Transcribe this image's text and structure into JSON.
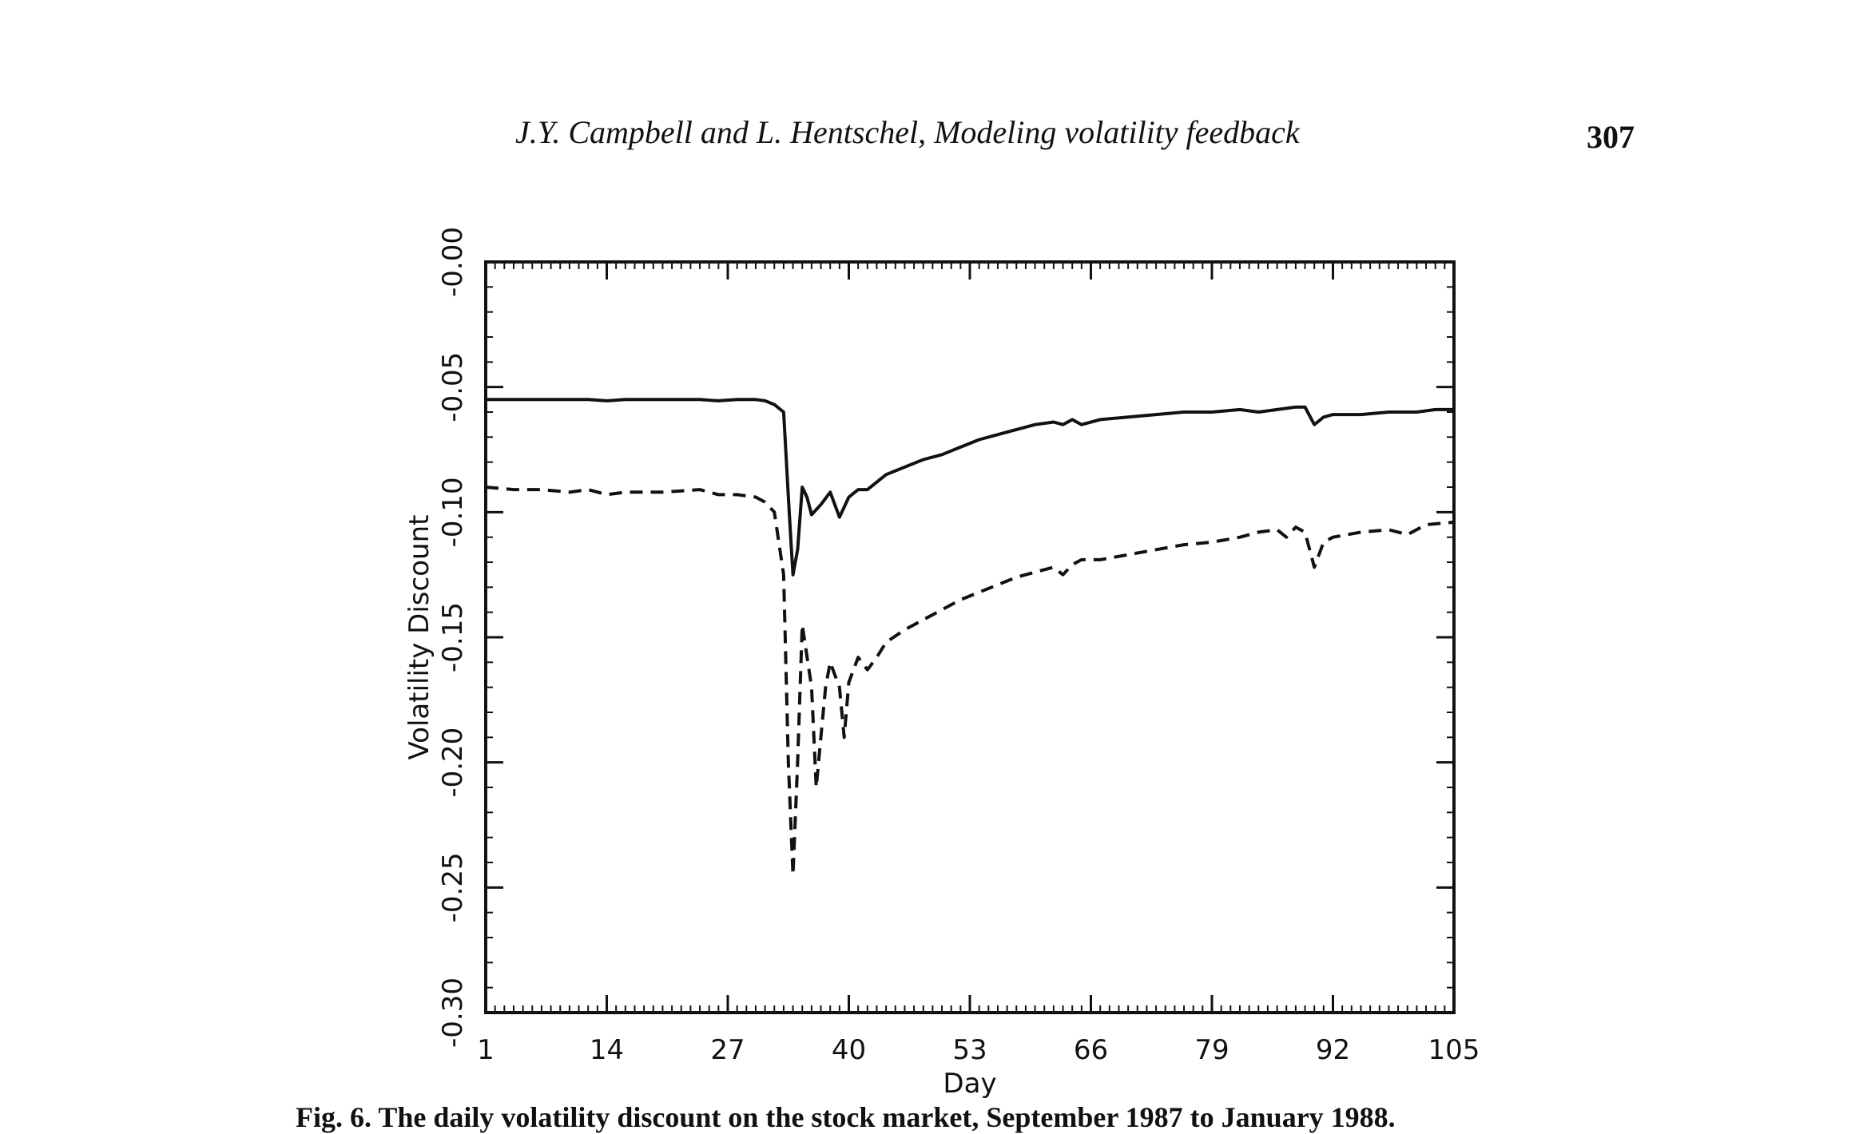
{
  "page": {
    "running_head": "J.Y. Campbell and L. Hentschel, Modeling volatility feedback",
    "page_number": "307",
    "caption": "Fig. 6. The daily volatility discount on the stock market, September 1987 to January 1988."
  },
  "chart_data": {
    "type": "line",
    "title": "",
    "xlabel": "Day",
    "ylabel": "Volatility Discount",
    "xlim": [
      1,
      105
    ],
    "ylim": [
      -0.3,
      0.0
    ],
    "xticks": [
      1,
      14,
      27,
      40,
      53,
      66,
      79,
      92,
      105
    ],
    "yticks": [
      -0.3,
      -0.25,
      -0.2,
      -0.15,
      -0.1,
      -0.05,
      -0.0
    ],
    "ytick_labels": [
      "-0.30",
      "-0.25",
      "-0.20",
      "-0.15",
      "-0.10",
      "-0.05",
      "-0.00"
    ],
    "grid": false,
    "legend": "none",
    "series": [
      {
        "style": "solid",
        "color": "#111111",
        "points": [
          [
            1,
            -0.055
          ],
          [
            3,
            -0.055
          ],
          [
            6,
            -0.055
          ],
          [
            9,
            -0.055
          ],
          [
            12,
            -0.055
          ],
          [
            14,
            -0.0555
          ],
          [
            16,
            -0.055
          ],
          [
            18,
            -0.055
          ],
          [
            21,
            -0.055
          ],
          [
            24,
            -0.055
          ],
          [
            26,
            -0.0555
          ],
          [
            28,
            -0.055
          ],
          [
            30,
            -0.055
          ],
          [
            31,
            -0.0555
          ],
          [
            32,
            -0.057
          ],
          [
            33,
            -0.06
          ],
          [
            33.6,
            -0.1
          ],
          [
            34,
            -0.125
          ],
          [
            34.5,
            -0.115
          ],
          [
            35,
            -0.09
          ],
          [
            35.5,
            -0.094
          ],
          [
            36,
            -0.101
          ],
          [
            37,
            -0.097
          ],
          [
            38,
            -0.092
          ],
          [
            39,
            -0.102
          ],
          [
            40,
            -0.094
          ],
          [
            41,
            -0.091
          ],
          [
            42,
            -0.091
          ],
          [
            43,
            -0.088
          ],
          [
            44,
            -0.085
          ],
          [
            46,
            -0.082
          ],
          [
            48,
            -0.079
          ],
          [
            50,
            -0.077
          ],
          [
            52,
            -0.074
          ],
          [
            54,
            -0.071
          ],
          [
            56,
            -0.069
          ],
          [
            58,
            -0.067
          ],
          [
            60,
            -0.065
          ],
          [
            62,
            -0.064
          ],
          [
            63,
            -0.065
          ],
          [
            64,
            -0.063
          ],
          [
            65,
            -0.065
          ],
          [
            67,
            -0.063
          ],
          [
            70,
            -0.062
          ],
          [
            73,
            -0.061
          ],
          [
            76,
            -0.06
          ],
          [
            79,
            -0.06
          ],
          [
            82,
            -0.059
          ],
          [
            84,
            -0.06
          ],
          [
            86,
            -0.059
          ],
          [
            88,
            -0.058
          ],
          [
            89,
            -0.058
          ],
          [
            90,
            -0.065
          ],
          [
            91,
            -0.062
          ],
          [
            92,
            -0.061
          ],
          [
            95,
            -0.061
          ],
          [
            98,
            -0.06
          ],
          [
            101,
            -0.06
          ],
          [
            103,
            -0.059
          ],
          [
            105,
            -0.059
          ]
        ]
      },
      {
        "style": "dashed",
        "color": "#111111",
        "points": [
          [
            1,
            -0.09
          ],
          [
            4,
            -0.091
          ],
          [
            7,
            -0.091
          ],
          [
            10,
            -0.092
          ],
          [
            12,
            -0.091
          ],
          [
            14,
            -0.093
          ],
          [
            16,
            -0.092
          ],
          [
            20,
            -0.092
          ],
          [
            24,
            -0.091
          ],
          [
            26,
            -0.093
          ],
          [
            28,
            -0.093
          ],
          [
            30,
            -0.094
          ],
          [
            31,
            -0.096
          ],
          [
            32,
            -0.1
          ],
          [
            33,
            -0.125
          ],
          [
            33.5,
            -0.2
          ],
          [
            34,
            -0.245
          ],
          [
            34.5,
            -0.2
          ],
          [
            35,
            -0.145
          ],
          [
            36,
            -0.17
          ],
          [
            36.5,
            -0.21
          ],
          [
            37,
            -0.19
          ],
          [
            37.5,
            -0.17
          ],
          [
            38,
            -0.16
          ],
          [
            39,
            -0.17
          ],
          [
            39.5,
            -0.19
          ],
          [
            40,
            -0.168
          ],
          [
            41,
            -0.158
          ],
          [
            42,
            -0.163
          ],
          [
            43,
            -0.158
          ],
          [
            44,
            -0.152
          ],
          [
            46,
            -0.147
          ],
          [
            48,
            -0.143
          ],
          [
            50,
            -0.139
          ],
          [
            52,
            -0.135
          ],
          [
            54,
            -0.132
          ],
          [
            56,
            -0.129
          ],
          [
            58,
            -0.126
          ],
          [
            60,
            -0.124
          ],
          [
            62,
            -0.122
          ],
          [
            63,
            -0.125
          ],
          [
            64,
            -0.121
          ],
          [
            65,
            -0.119
          ],
          [
            67,
            -0.119
          ],
          [
            70,
            -0.117
          ],
          [
            73,
            -0.115
          ],
          [
            76,
            -0.113
          ],
          [
            79,
            -0.112
          ],
          [
            82,
            -0.11
          ],
          [
            84,
            -0.108
          ],
          [
            86,
            -0.107
          ],
          [
            87,
            -0.11
          ],
          [
            88,
            -0.106
          ],
          [
            89,
            -0.108
          ],
          [
            90,
            -0.122
          ],
          [
            91,
            -0.112
          ],
          [
            92,
            -0.11
          ],
          [
            95,
            -0.108
          ],
          [
            98,
            -0.107
          ],
          [
            100,
            -0.109
          ],
          [
            102,
            -0.105
          ],
          [
            105,
            -0.104
          ]
        ]
      }
    ]
  }
}
